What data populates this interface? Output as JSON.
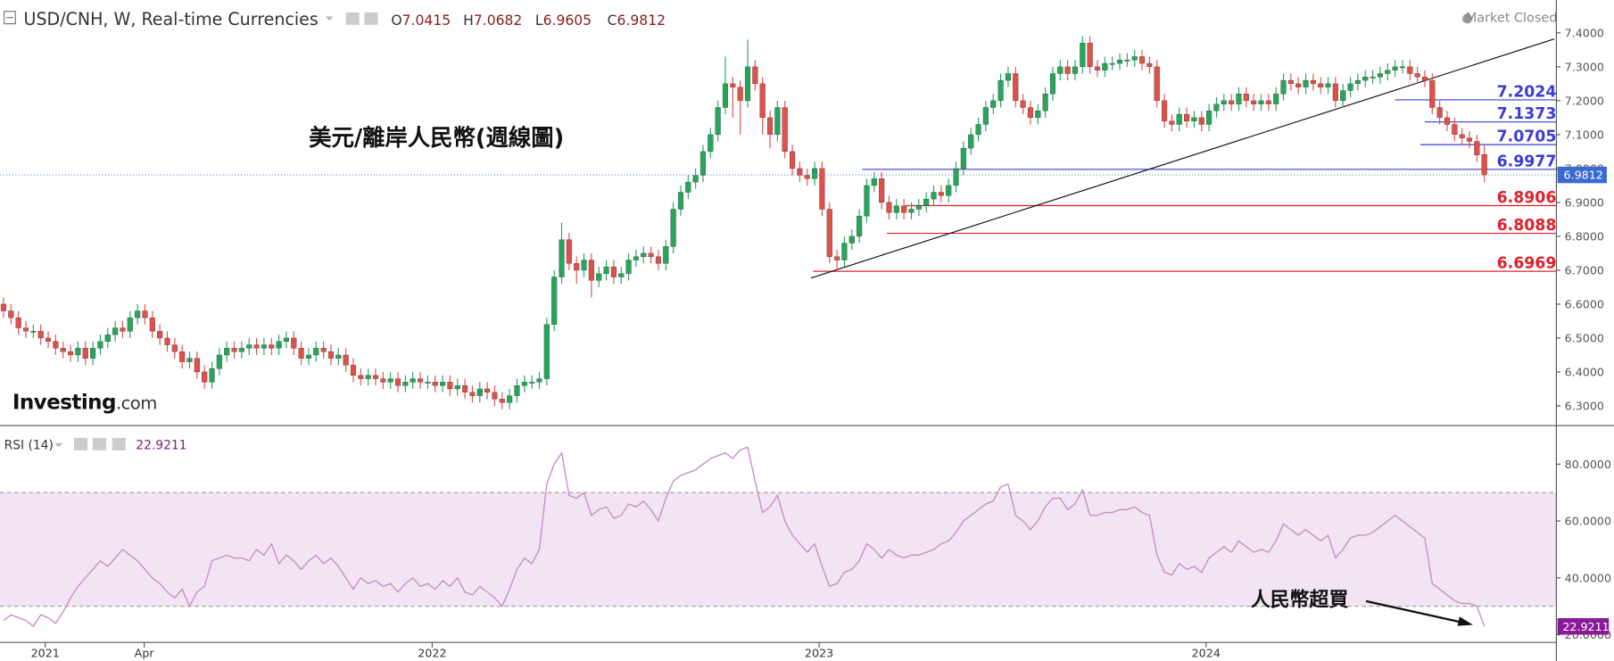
{
  "chart_data": {
    "type": "candlestick",
    "title": "USD/CNH, W, Real-time Currencies",
    "ohlc_labels": [
      "O",
      "H",
      "L",
      "C"
    ],
    "status": "Market Closed",
    "annotation": "美元/離岸人民幣(週線圖)",
    "rsi_annotation": "人民幣超買",
    "logo": "Investing",
    "logo_suffix": ".com",
    "up_color": "#26a65b",
    "down_color": "#e0504b",
    "xlim": [
      -0.48,
      208.4
    ],
    "ylim": [
      6.242,
      7.497
    ],
    "yticks": [
      {
        "value": 6.3,
        "label": "6.3000"
      },
      {
        "value": 6.4,
        "label": "6.4000"
      },
      {
        "value": 6.5,
        "label": "6.5000"
      },
      {
        "value": 6.6,
        "label": "6.6000"
      },
      {
        "value": 6.7,
        "label": "6.7000"
      },
      {
        "value": 6.8,
        "label": "6.8000"
      },
      {
        "value": 6.9,
        "label": "6.9000"
      },
      {
        "value": 7.0,
        "label": "7.0000"
      },
      {
        "value": 7.1,
        "label": "7.1000"
      },
      {
        "value": 7.2,
        "label": "7.2000"
      },
      {
        "value": 7.3,
        "label": "7.3000"
      },
      {
        "value": 7.4,
        "label": "7.4000"
      }
    ],
    "xticks": [
      {
        "value": 5.6,
        "label": "2021"
      },
      {
        "value": 18.9,
        "label": "Apr"
      },
      {
        "value": 57.6,
        "label": "2022"
      },
      {
        "value": 109.6,
        "label": "2023"
      },
      {
        "value": 161.6,
        "label": "2024"
      }
    ],
    "candles": {
      "open": [
        6.6,
        6.58,
        6.56,
        6.53,
        6.52,
        6.52,
        6.5,
        6.49,
        6.47,
        6.46,
        6.45,
        6.47,
        6.44,
        6.47,
        6.49,
        6.51,
        6.53,
        6.52,
        6.56,
        6.58,
        6.56,
        6.52,
        6.5,
        6.48,
        6.46,
        6.43,
        6.44,
        6.4,
        6.37,
        6.41,
        6.45,
        6.47,
        6.46,
        6.47,
        6.48,
        6.47,
        6.48,
        6.47,
        6.49,
        6.5,
        6.47,
        6.44,
        6.45,
        6.47,
        6.46,
        6.44,
        6.45,
        6.42,
        6.39,
        6.38,
        6.39,
        6.38,
        6.37,
        6.38,
        6.36,
        6.37,
        6.38,
        6.37,
        6.37,
        6.36,
        6.37,
        6.35,
        6.36,
        6.34,
        6.33,
        6.35,
        6.34,
        6.32,
        6.31,
        6.33,
        6.36,
        6.37,
        6.37,
        6.38,
        6.54,
        6.68,
        6.79,
        6.72,
        6.7,
        6.73,
        6.67,
        6.69,
        6.71,
        6.68,
        6.69,
        6.73,
        6.74,
        6.75,
        6.74,
        6.72,
        6.77,
        6.88,
        6.93,
        6.96,
        6.98,
        7.05,
        7.1,
        7.18,
        7.25,
        7.24,
        7.2,
        7.3,
        7.25,
        7.15,
        7.1,
        7.18,
        7.05,
        7.0,
        6.98,
        6.97,
        7.0,
        6.88,
        6.74,
        6.73,
        6.78,
        6.8,
        6.86,
        6.95,
        6.97,
        6.9,
        6.87,
        6.89,
        6.87,
        6.88,
        6.89,
        6.91,
        6.93,
        6.92,
        6.95,
        7.0,
        7.06,
        7.1,
        7.13,
        7.18,
        7.2,
        7.26,
        7.28,
        7.2,
        7.18,
        7.15,
        7.17,
        7.22,
        7.28,
        7.3,
        7.28,
        7.3,
        7.37,
        7.3,
        7.29,
        7.31,
        7.31,
        7.32,
        7.32,
        7.33,
        7.31,
        7.3,
        7.2,
        7.14,
        7.13,
        7.16,
        7.14,
        7.15,
        7.13,
        7.17,
        7.19,
        7.2,
        7.19,
        7.22,
        7.2,
        7.19,
        7.2,
        7.19,
        7.22,
        7.26,
        7.25,
        7.24,
        7.26,
        7.25,
        7.24,
        7.25,
        7.2,
        7.23,
        7.25,
        7.26,
        7.27,
        7.27,
        7.28,
        7.29,
        7.3,
        7.3,
        7.28,
        7.27,
        7.26,
        7.18,
        7.15,
        7.13,
        7.1,
        7.09,
        7.08,
        7.0415
      ],
      "high": [
        6.62,
        6.6,
        6.58,
        6.55,
        6.54,
        6.54,
        6.52,
        6.51,
        6.49,
        6.48,
        6.49,
        6.49,
        6.49,
        6.51,
        6.53,
        6.55,
        6.55,
        6.58,
        6.6,
        6.6,
        6.58,
        6.54,
        6.52,
        6.5,
        6.48,
        6.46,
        6.46,
        6.42,
        6.43,
        6.47,
        6.49,
        6.49,
        6.49,
        6.5,
        6.5,
        6.5,
        6.5,
        6.51,
        6.52,
        6.52,
        6.49,
        6.47,
        6.49,
        6.49,
        6.48,
        6.47,
        6.47,
        6.44,
        6.41,
        6.41,
        6.41,
        6.4,
        6.4,
        6.4,
        6.39,
        6.4,
        6.4,
        6.39,
        6.39,
        6.39,
        6.39,
        6.38,
        6.38,
        6.36,
        6.37,
        6.37,
        6.36,
        6.34,
        6.35,
        6.38,
        6.39,
        6.39,
        6.4,
        6.56,
        6.7,
        6.84,
        6.81,
        6.74,
        6.75,
        6.75,
        6.71,
        6.73,
        6.73,
        6.71,
        6.75,
        6.76,
        6.77,
        6.77,
        6.76,
        6.79,
        6.9,
        6.95,
        6.98,
        7.0,
        7.07,
        7.12,
        7.2,
        7.33,
        7.27,
        7.26,
        7.38,
        7.32,
        7.27,
        7.17,
        7.2,
        7.2,
        7.07,
        7.02,
        7.0,
        7.02,
        7.02,
        6.9,
        6.76,
        6.8,
        6.82,
        6.88,
        6.97,
        6.99,
        6.99,
        6.92,
        6.91,
        6.91,
        6.9,
        6.91,
        6.93,
        6.95,
        6.95,
        6.97,
        7.02,
        7.08,
        7.12,
        7.15,
        7.2,
        7.22,
        7.28,
        7.3,
        7.3,
        7.22,
        7.2,
        7.19,
        7.24,
        7.3,
        7.32,
        7.32,
        7.32,
        7.39,
        7.39,
        7.32,
        7.33,
        7.33,
        7.34,
        7.34,
        7.35,
        7.35,
        7.33,
        7.32,
        7.22,
        7.16,
        7.18,
        7.18,
        7.17,
        7.17,
        7.19,
        7.21,
        7.22,
        7.22,
        7.24,
        7.24,
        7.22,
        7.22,
        7.22,
        7.24,
        7.28,
        7.28,
        7.27,
        7.28,
        7.28,
        7.27,
        7.27,
        7.27,
        7.25,
        7.27,
        7.28,
        7.29,
        7.29,
        7.3,
        7.31,
        7.32,
        7.32,
        7.32,
        7.3,
        7.29,
        7.28,
        7.2,
        7.17,
        7.15,
        7.12,
        7.11,
        7.1,
        7.0682
      ],
      "low": [
        6.56,
        6.54,
        6.51,
        6.5,
        6.5,
        6.48,
        6.47,
        6.45,
        6.44,
        6.43,
        6.43,
        6.42,
        6.42,
        6.45,
        6.47,
        6.49,
        6.5,
        6.5,
        6.54,
        6.54,
        6.5,
        6.48,
        6.46,
        6.44,
        6.41,
        6.41,
        6.38,
        6.35,
        6.35,
        6.39,
        6.43,
        6.44,
        6.44,
        6.45,
        6.45,
        6.45,
        6.45,
        6.45,
        6.47,
        6.45,
        6.42,
        6.42,
        6.43,
        6.44,
        6.42,
        6.42,
        6.4,
        6.37,
        6.36,
        6.36,
        6.36,
        6.35,
        6.35,
        6.34,
        6.34,
        6.35,
        6.35,
        6.35,
        6.34,
        6.34,
        6.33,
        6.33,
        6.32,
        6.31,
        6.31,
        6.32,
        6.3,
        6.29,
        6.29,
        6.31,
        6.34,
        6.35,
        6.35,
        6.36,
        6.52,
        6.66,
        6.7,
        6.66,
        6.68,
        6.62,
        6.65,
        6.67,
        6.66,
        6.66,
        6.67,
        6.71,
        6.72,
        6.72,
        6.7,
        6.7,
        6.75,
        6.86,
        6.91,
        6.94,
        6.96,
        7.03,
        7.08,
        7.16,
        7.15,
        7.1,
        7.18,
        7.23,
        7.1,
        7.06,
        7.08,
        7.03,
        6.98,
        6.96,
        6.95,
        6.95,
        6.86,
        6.72,
        6.7,
        6.71,
        6.76,
        6.78,
        6.84,
        6.93,
        6.88,
        6.85,
        6.85,
        6.85,
        6.85,
        6.86,
        6.87,
        6.89,
        6.9,
        6.9,
        6.93,
        6.98,
        7.04,
        7.08,
        7.11,
        7.16,
        7.18,
        7.24,
        7.18,
        7.16,
        7.13,
        7.13,
        7.15,
        7.2,
        7.26,
        7.26,
        7.26,
        7.28,
        7.28,
        7.27,
        7.27,
        7.29,
        7.29,
        7.3,
        7.3,
        7.29,
        7.28,
        7.18,
        7.12,
        7.11,
        7.11,
        7.12,
        7.12,
        7.11,
        7.11,
        7.15,
        7.17,
        7.17,
        7.17,
        7.18,
        7.17,
        7.17,
        7.17,
        7.17,
        7.2,
        7.23,
        7.22,
        7.22,
        7.23,
        7.22,
        7.22,
        7.18,
        7.18,
        7.21,
        7.23,
        7.24,
        7.25,
        7.25,
        7.26,
        7.27,
        7.28,
        7.26,
        7.25,
        7.24,
        7.16,
        7.13,
        7.11,
        7.08,
        7.07,
        7.06,
        7.02,
        6.9605
      ],
      "close": [
        6.58,
        6.56,
        6.53,
        6.52,
        6.52,
        6.5,
        6.49,
        6.47,
        6.46,
        6.45,
        6.47,
        6.44,
        6.47,
        6.49,
        6.51,
        6.53,
        6.52,
        6.56,
        6.58,
        6.56,
        6.52,
        6.5,
        6.48,
        6.46,
        6.43,
        6.44,
        6.4,
        6.37,
        6.41,
        6.45,
        6.47,
        6.46,
        6.47,
        6.48,
        6.47,
        6.48,
        6.47,
        6.49,
        6.5,
        6.47,
        6.44,
        6.45,
        6.47,
        6.46,
        6.44,
        6.45,
        6.42,
        6.39,
        6.38,
        6.39,
        6.38,
        6.37,
        6.38,
        6.36,
        6.37,
        6.38,
        6.37,
        6.37,
        6.36,
        6.37,
        6.35,
        6.36,
        6.34,
        6.33,
        6.35,
        6.34,
        6.32,
        6.31,
        6.33,
        6.36,
        6.37,
        6.37,
        6.38,
        6.54,
        6.68,
        6.79,
        6.72,
        6.7,
        6.73,
        6.67,
        6.69,
        6.71,
        6.68,
        6.69,
        6.73,
        6.74,
        6.75,
        6.74,
        6.72,
        6.77,
        6.88,
        6.93,
        6.96,
        6.98,
        7.05,
        7.1,
        7.18,
        7.25,
        7.24,
        7.2,
        7.3,
        7.25,
        7.15,
        7.1,
        7.18,
        7.05,
        7.0,
        6.98,
        6.97,
        7.0,
        6.88,
        6.74,
        6.73,
        6.78,
        6.8,
        6.86,
        6.95,
        6.97,
        6.9,
        6.87,
        6.89,
        6.87,
        6.88,
        6.89,
        6.91,
        6.93,
        6.92,
        6.95,
        7.0,
        7.06,
        7.1,
        7.13,
        7.18,
        7.2,
        7.26,
        7.28,
        7.2,
        7.18,
        7.15,
        7.17,
        7.22,
        7.28,
        7.3,
        7.28,
        7.3,
        7.37,
        7.3,
        7.29,
        7.31,
        7.31,
        7.32,
        7.32,
        7.33,
        7.31,
        7.3,
        7.2,
        7.14,
        7.13,
        7.16,
        7.14,
        7.15,
        7.13,
        7.17,
        7.19,
        7.2,
        7.19,
        7.22,
        7.2,
        7.19,
        7.2,
        7.19,
        7.22,
        7.26,
        7.25,
        7.24,
        7.26,
        7.25,
        7.24,
        7.25,
        7.2,
        7.23,
        7.25,
        7.26,
        7.27,
        7.27,
        7.28,
        7.29,
        7.3,
        7.3,
        7.28,
        7.27,
        7.26,
        7.18,
        7.15,
        7.13,
        7.1,
        7.09,
        7.08,
        7.04,
        6.9812
      ]
    },
    "levels": [
      {
        "value": 7.2024,
        "from": 187,
        "color": "#3c3cd6"
      },
      {
        "value": 7.1373,
        "from": 191,
        "color": "#3c3cd6"
      },
      {
        "value": 7.0705,
        "from": 190.4,
        "color": "#3c3cd6"
      },
      {
        "value": 6.9977,
        "from": 115.4,
        "color": "#3c3cd6"
      },
      {
        "value": 6.8906,
        "from": 121.2,
        "color": "#e0202a"
      },
      {
        "value": 6.8088,
        "from": 118.7,
        "color": "#e0202a"
      },
      {
        "value": 6.6969,
        "from": 108.8,
        "color": "#e0202a"
      }
    ],
    "trendline": {
      "x": [
        108.5,
        208.4
      ],
      "y": [
        6.677,
        7.382
      ],
      "color": "#111111"
    },
    "rsi": {
      "name": "RSI (14)",
      "color": "#c58fc9",
      "ylim": [
        17.3,
        93.6
      ],
      "bands": [
        30,
        70
      ],
      "yticks": [
        {
          "value": 20,
          "label": "20.0000"
        },
        {
          "value": 40,
          "label": "40.0000"
        },
        {
          "value": 60,
          "label": "60.0000"
        },
        {
          "value": 80,
          "label": "80.0000"
        }
      ],
      "values": [
        25,
        27,
        26,
        25,
        23,
        27,
        26,
        24,
        28,
        33,
        37,
        40,
        43,
        46,
        44,
        47,
        50,
        48,
        46,
        43,
        40,
        38,
        35,
        33,
        36,
        30,
        35,
        37,
        46,
        47,
        48,
        47,
        47,
        46,
        50,
        48,
        52,
        45,
        48,
        46,
        43,
        46,
        48,
        45,
        47,
        44,
        40,
        36,
        40,
        38,
        39,
        37,
        38,
        35,
        38,
        40,
        37,
        38,
        36,
        39,
        37,
        40,
        35,
        34,
        37,
        35,
        33,
        30,
        36,
        43,
        47,
        45,
        50,
        73,
        80,
        84,
        69,
        68,
        70,
        62,
        64,
        65,
        61,
        62,
        66,
        65,
        67,
        64,
        60,
        68,
        74,
        76,
        77,
        78,
        80,
        82,
        83,
        84,
        82,
        85,
        86,
        74,
        63,
        65,
        69,
        60,
        55,
        52,
        49,
        52,
        44,
        37,
        38,
        42,
        43,
        46,
        52,
        50,
        47,
        50,
        48,
        47,
        48,
        48,
        49,
        50,
        52,
        53,
        56,
        60,
        62,
        64,
        66,
        67,
        72,
        73,
        62,
        60,
        57,
        60,
        65,
        68,
        68,
        64,
        66,
        71,
        62,
        62,
        63,
        63,
        64,
        64,
        65,
        63,
        62,
        48,
        42,
        41,
        45,
        43,
        44,
        42,
        47,
        49,
        51,
        49,
        53,
        51,
        49,
        50,
        49,
        53,
        59,
        57,
        55,
        57,
        55,
        53,
        55,
        47,
        50,
        54,
        55,
        55,
        56,
        58,
        60,
        62,
        60,
        58,
        56,
        54,
        38,
        36,
        34,
        32,
        31,
        31,
        30,
        22.9211
      ]
    }
  }
}
